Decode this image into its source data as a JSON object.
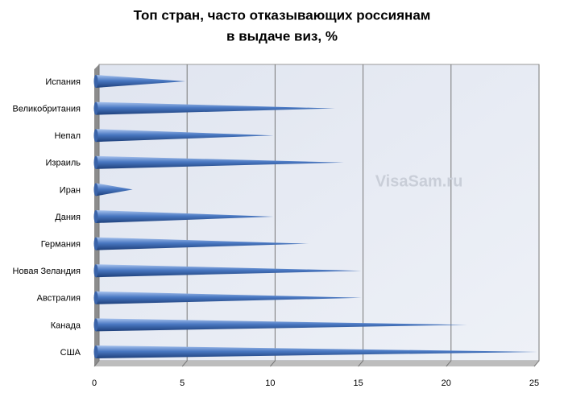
{
  "chart_data": {
    "type": "bar",
    "orientation": "horizontal",
    "title": [
      "Топ стран, часто отказывающих россиянам",
      "в выдаче виз, %"
    ],
    "watermark": "VisaSam.ru",
    "categories": [
      "Испания",
      "Великобритания",
      "Непал",
      "Израиль",
      "Иран",
      "Дания",
      "Германия",
      "Новая Зеландия",
      "Австралия",
      "Канада",
      "США"
    ],
    "values": [
      5,
      13.5,
      10,
      14,
      2,
      10,
      12,
      15,
      15,
      21,
      25
    ],
    "color": "#4a78c2",
    "xlim": [
      0,
      25
    ],
    "xticks": [
      0,
      5,
      10,
      15,
      20,
      25
    ],
    "grid": true
  }
}
